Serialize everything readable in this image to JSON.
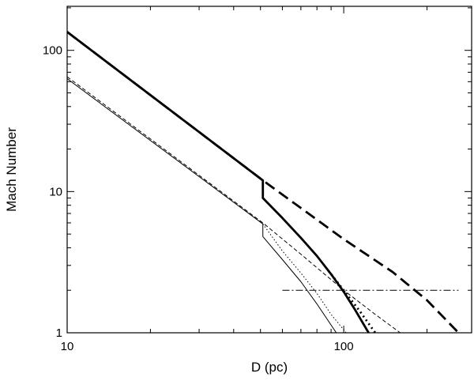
{
  "chart_data": {
    "type": "line",
    "title": "",
    "xlabel": "D (pc)",
    "ylabel": "Mach Number",
    "xscale": "log",
    "yscale": "log",
    "xlim": [
      10,
      290
    ],
    "ylim": [
      1,
      205
    ],
    "grid": false,
    "legend": "none",
    "x_ticks": [
      {
        "value": 10,
        "label": "10"
      },
      {
        "value": 100,
        "label": "100"
      }
    ],
    "y_ticks": [
      {
        "value": 1,
        "label": "1"
      },
      {
        "value": 10,
        "label": "10"
      },
      {
        "value": 100,
        "label": "100"
      }
    ],
    "series": [
      {
        "style": "thick-dashed",
        "x": [
          10,
          51,
          100,
          150,
          200,
          260
        ],
        "y": [
          135,
          12,
          4.6,
          2.7,
          1.7,
          1.0
        ]
      },
      {
        "style": "thick-solid",
        "x": [
          10,
          51,
          51,
          60,
          70,
          80,
          90,
          100,
          110,
          123
        ],
        "y": [
          135,
          12,
          9.0,
          6.5,
          4.7,
          3.5,
          2.6,
          1.95,
          1.45,
          1.0
        ]
      },
      {
        "style": "thick-dotted",
        "x": [
          88,
          100,
          115,
          130
        ],
        "y": [
          2.75,
          2.0,
          1.4,
          1.0
        ]
      },
      {
        "style": "thin-dashed",
        "x": [
          10,
          51,
          70,
          100,
          130,
          160
        ],
        "y": [
          65,
          6.0,
          3.6,
          2.0,
          1.35,
          1.0
        ]
      },
      {
        "style": "thin-solid",
        "x": [
          10,
          51,
          51,
          60,
          70,
          80,
          94
        ],
        "y": [
          63,
          5.9,
          4.8,
          3.3,
          2.3,
          1.6,
          1.0
        ]
      },
      {
        "style": "thin-dotted",
        "x": [
          51,
          60,
          70,
          80,
          90,
          102
        ],
        "y": [
          5.9,
          3.8,
          2.65,
          1.9,
          1.35,
          1.0
        ]
      },
      {
        "style": "thin-dashdot",
        "x": [
          60,
          260
        ],
        "y": [
          2.0,
          2.0
        ]
      }
    ]
  }
}
